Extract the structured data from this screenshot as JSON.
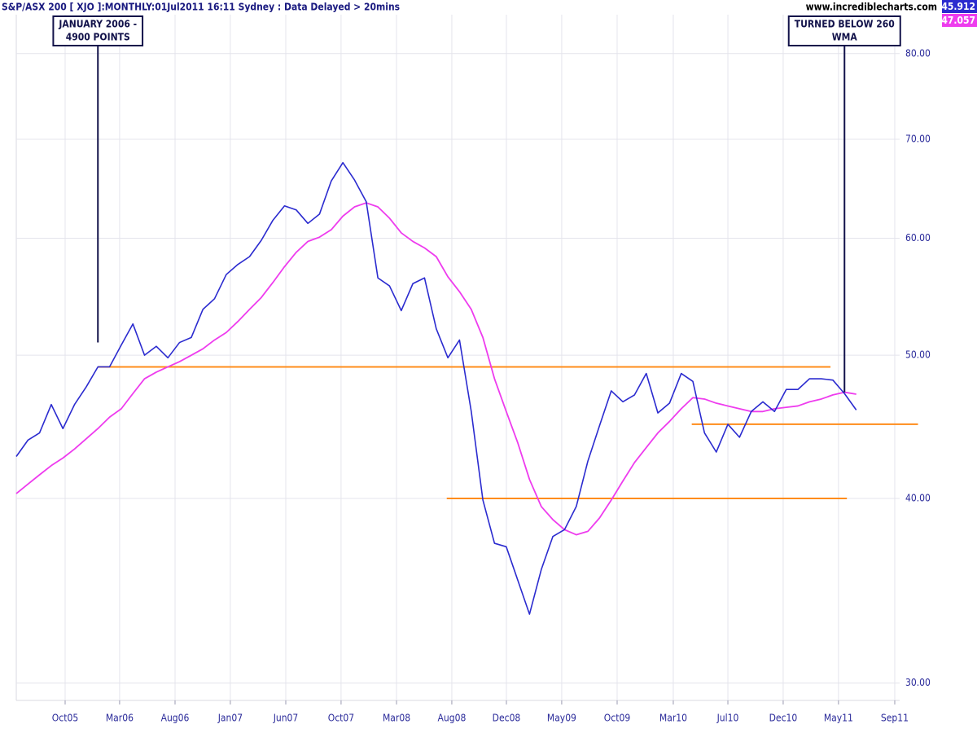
{
  "chart_data": {
    "type": "line",
    "title": "S&P/ASX 200 [ XJO ]:MONTHLY:01Jul2011 16:11 Sydney : Data Delayed > 20mins",
    "source": "www.incrediblecharts.com",
    "log_scale": true,
    "grid": true,
    "x": [
      2005.417,
      2005.5,
      2005.583,
      2005.667,
      2005.75,
      2005.833,
      2005.917,
      2006.0,
      2006.083,
      2006.167,
      2006.25,
      2006.333,
      2006.417,
      2006.5,
      2006.583,
      2006.667,
      2006.75,
      2006.833,
      2006.917,
      2007.0,
      2007.083,
      2007.167,
      2007.25,
      2007.333,
      2007.417,
      2007.5,
      2007.583,
      2007.667,
      2007.75,
      2007.833,
      2007.917,
      2008.0,
      2008.083,
      2008.167,
      2008.25,
      2008.333,
      2008.417,
      2008.5,
      2008.583,
      2008.667,
      2008.75,
      2008.833,
      2008.917,
      2009.0,
      2009.083,
      2009.167,
      2009.25,
      2009.333,
      2009.417,
      2009.5,
      2009.583,
      2009.667,
      2009.75,
      2009.833,
      2009.917,
      2010.0,
      2010.083,
      2010.167,
      2010.25,
      2010.333,
      2010.417,
      2010.5,
      2010.583,
      2010.667,
      2010.75,
      2010.833,
      2010.917,
      2011.0,
      2011.083,
      2011.167,
      2011.25,
      2011.333,
      2011.417
    ],
    "series": [
      {
        "color": "#2b2bcf",
        "values": [
          42.7,
          43.8,
          44.3,
          46.3,
          44.6,
          46.3,
          47.6,
          49.1,
          49.1,
          50.8,
          52.5,
          50.0,
          50.7,
          49.8,
          51.0,
          51.4,
          53.7,
          54.6,
          56.7,
          57.6,
          58.3,
          59.8,
          61.7,
          63.1,
          62.7,
          61.4,
          62.3,
          65.6,
          67.5,
          65.7,
          63.5,
          56.4,
          55.7,
          53.6,
          55.9,
          56.4,
          52.1,
          49.8,
          51.2,
          45.8,
          39.9,
          37.3,
          37.1,
          35.2,
          33.4,
          35.8,
          37.7,
          38.1,
          39.5,
          42.4,
          44.8,
          47.3,
          46.5,
          47.0,
          48.6,
          45.7,
          46.4,
          48.6,
          48.0,
          44.3,
          43.0,
          44.9,
          44.0,
          45.8,
          46.5,
          45.8,
          47.4,
          47.4,
          48.2,
          48.2,
          48.1,
          47.1,
          45.912
        ]
      },
      {
        "color": "#ee3cee",
        "values": [
          40.3,
          40.9,
          41.5,
          42.1,
          42.6,
          43.2,
          43.9,
          44.6,
          45.4,
          46.0,
          47.1,
          48.2,
          48.7,
          49.1,
          49.5,
          50.0,
          50.5,
          51.2,
          51.8,
          52.7,
          53.7,
          54.7,
          56.0,
          57.4,
          58.7,
          59.7,
          60.1,
          60.8,
          62.1,
          63.0,
          63.4,
          63.0,
          61.9,
          60.5,
          59.7,
          59.1,
          58.3,
          56.5,
          55.2,
          53.7,
          51.4,
          48.2,
          45.8,
          43.6,
          41.2,
          39.5,
          38.7,
          38.1,
          37.8,
          38.0,
          38.8,
          39.9,
          41.1,
          42.3,
          43.3,
          44.3,
          45.1,
          46.0,
          46.8,
          46.7,
          46.4,
          46.2,
          46.0,
          45.8,
          45.8,
          46.0,
          46.1,
          46.2,
          46.5,
          46.7,
          47.0,
          47.2,
          47.057
        ]
      }
    ],
    "levels_color": "#ff8c1a",
    "levels": [
      {
        "y": 49.1,
        "x": [
          2006.0,
          2011.233
        ]
      },
      {
        "y": 40.0,
        "x": [
          2008.492,
          2011.35
        ]
      },
      {
        "y": 44.9,
        "x": [
          2010.242,
          2011.858
        ]
      }
    ],
    "annotations": [
      {
        "text": [
          "JANUARY 2006 -",
          "4900 POINTS"
        ],
        "x": 2006.0,
        "y": 51.0
      },
      {
        "text": [
          "TURNED BELOW 260",
          "WMA"
        ],
        "x": 2011.333,
        "y": 47.2
      }
    ],
    "xlim": [
      2005.417,
      2011.727
    ],
    "ylim": [
      29.2,
      85
    ],
    "xticks": [
      {
        "value": 2005.766,
        "label": "Oct05"
      },
      {
        "value": 2006.155,
        "label": "Mar06"
      },
      {
        "value": 2006.551,
        "label": "Aug06"
      },
      {
        "value": 2006.946,
        "label": "Jan07"
      },
      {
        "value": 2007.342,
        "label": "Jun07"
      },
      {
        "value": 2007.737,
        "label": "Oct07"
      },
      {
        "value": 2008.133,
        "label": "Mar08"
      },
      {
        "value": 2008.528,
        "label": "Aug08"
      },
      {
        "value": 2008.918,
        "label": "Dec08"
      },
      {
        "value": 2009.313,
        "label": "May09"
      },
      {
        "value": 2009.709,
        "label": "Oct09"
      },
      {
        "value": 2010.11,
        "label": "Mar10"
      },
      {
        "value": 2010.5,
        "label": "Jul10"
      },
      {
        "value": 2010.895,
        "label": "Dec10"
      },
      {
        "value": 2011.29,
        "label": "May11"
      },
      {
        "value": 2011.692,
        "label": "Sep11"
      }
    ],
    "yticks": [
      {
        "value": 30,
        "label": "30.00"
      },
      {
        "value": 40,
        "label": "40.00"
      },
      {
        "value": 50,
        "label": "50.00"
      },
      {
        "value": 60,
        "label": "60.00"
      },
      {
        "value": 70,
        "label": "70.00"
      },
      {
        "value": 80,
        "label": "80.00"
      }
    ]
  }
}
